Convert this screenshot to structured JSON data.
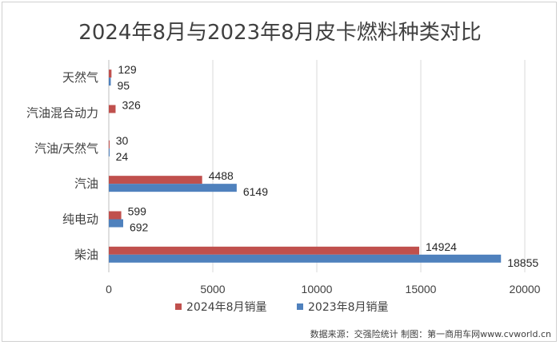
{
  "chart_data": {
    "type": "bar",
    "orientation": "horizontal",
    "title": "2024年8月与2023年8月皮卡燃料种类对比",
    "categories": [
      "天然气",
      "汽油混合动力",
      "汽油/天然气",
      "汽油",
      "纯电动",
      "柴油"
    ],
    "series": [
      {
        "name": "2024年8月销量",
        "color": "#c0504d",
        "values": [
          129,
          326,
          30,
          4488,
          599,
          14924
        ]
      },
      {
        "name": "2023年8月销量",
        "color": "#4f81bd",
        "values": [
          95,
          null,
          24,
          6149,
          692,
          18855
        ]
      }
    ],
    "xlim": [
      0,
      20000
    ],
    "xticks": [
      0,
      5000,
      10000,
      15000,
      20000
    ],
    "grid": true,
    "legend": "bottom"
  },
  "source": "数据来源：交强险统计 制图：第一商用车网www.cvworld.cn"
}
